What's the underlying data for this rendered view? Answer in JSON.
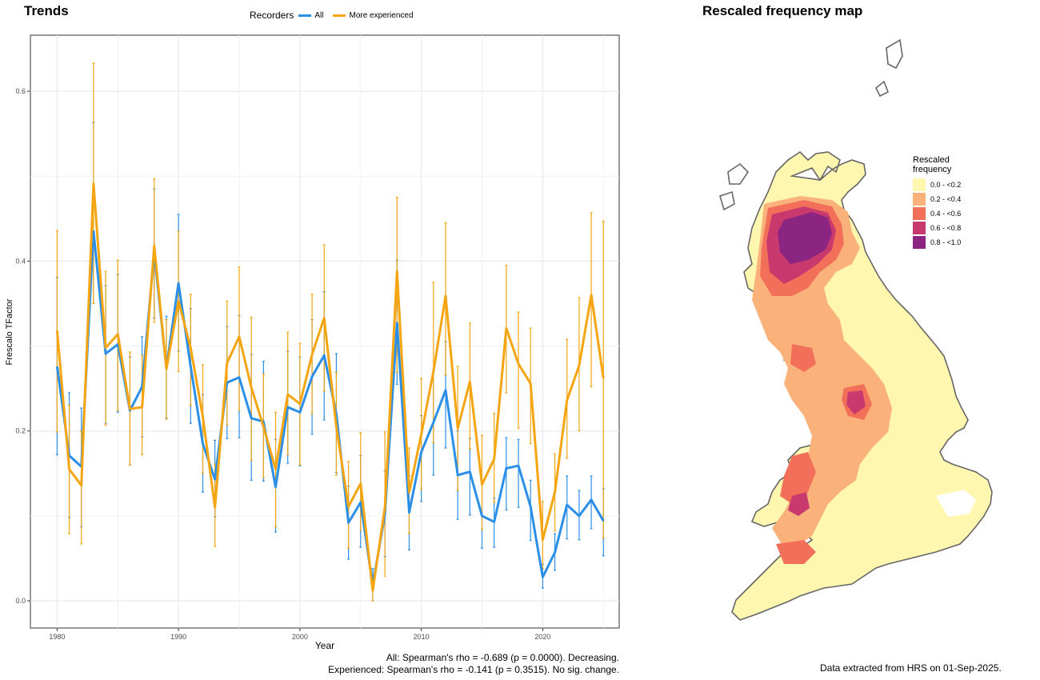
{
  "trends_title": "Trends",
  "map_title": "Rescaled frequency map",
  "legend": {
    "title": "Recorders",
    "items": [
      {
        "label": "All",
        "color": "#2B8FE8"
      },
      {
        "label": "More experienced",
        "color": "#F5A511"
      }
    ]
  },
  "stats": {
    "all": "All: Spearman's rho = -0.689 (p = 0.0000). Decreasing.",
    "experienced": "Experienced: Spearman's rho = -0.141 (p = 0.3515). No sig. change."
  },
  "footer": "Data extracted from HRS on 01-Sep-2025.",
  "map_legend": {
    "title": "Rescaled\nfrequency",
    "bins": [
      {
        "label": "0.0 - <0.2",
        "color": "#FFF7B0"
      },
      {
        "label": "0.2 - <0.4",
        "color": "#FBB27A"
      },
      {
        "label": "0.4 - <0.6",
        "color": "#F2705A"
      },
      {
        "label": "0.6 - <0.8",
        "color": "#C83A6E"
      },
      {
        "label": "0.8 - <1.0",
        "color": "#8B2581"
      }
    ]
  },
  "chart_data": {
    "type": "line",
    "xlabel": "Year",
    "ylabel": "Frescalo TFactor",
    "xlim": [
      1977.8,
      2026.3
    ],
    "ylim": [
      -0.032,
      0.666
    ],
    "xticks": [
      1980,
      1990,
      2000,
      2010,
      2020
    ],
    "yticks": [
      0.0,
      0.2,
      0.4,
      0.6
    ],
    "ytick_labels": [
      "0.0",
      "0.2",
      "0.4",
      "0.6"
    ],
    "grid": true,
    "legend_position": "top",
    "x": [
      1980,
      1981,
      1982,
      1983,
      1984,
      1985,
      1986,
      1987,
      1988,
      1989,
      1990,
      1991,
      1992,
      1993,
      1994,
      1995,
      1996,
      1997,
      1998,
      1999,
      2000,
      2001,
      2002,
      2003,
      2004,
      2005,
      2006,
      2007,
      2008,
      2009,
      2010,
      2011,
      2012,
      2013,
      2014,
      2015,
      2016,
      2017,
      2018,
      2019,
      2020,
      2021,
      2022,
      2023,
      2024,
      2025
    ],
    "series": [
      {
        "name": "All",
        "color": "#2B8FE8",
        "values": [
          0.276,
          0.171,
          0.158,
          0.435,
          0.291,
          0.302,
          0.224,
          0.252,
          0.41,
          0.274,
          0.374,
          0.276,
          0.185,
          0.143,
          0.257,
          0.263,
          0.215,
          0.211,
          0.134,
          0.228,
          0.222,
          0.264,
          0.289,
          0.22,
          0.092,
          0.116,
          0.018,
          0.102,
          0.327,
          0.104,
          0.175,
          0.21,
          0.248,
          0.148,
          0.152,
          0.1,
          0.093,
          0.156,
          0.159,
          0.111,
          0.028,
          0.057,
          0.113,
          0.1,
          0.119,
          0.094
        ],
        "lower": [
          0.172,
          0.098,
          0.087,
          0.35,
          0.209,
          0.222,
          0.16,
          0.193,
          0.333,
          0.215,
          0.294,
          0.209,
          0.128,
          0.099,
          0.191,
          0.192,
          0.142,
          0.141,
          0.081,
          0.162,
          0.159,
          0.196,
          0.213,
          0.151,
          0.049,
          0.063,
          0.0,
          0.052,
          0.255,
          0.06,
          0.117,
          0.148,
          0.18,
          0.096,
          0.101,
          0.062,
          0.063,
          0.107,
          0.11,
          0.071,
          0.015,
          0.036,
          0.073,
          0.072,
          0.085,
          0.053
        ],
        "upper": [
          0.381,
          0.245,
          0.227,
          0.563,
          0.371,
          0.384,
          0.287,
          0.311,
          0.485,
          0.335,
          0.455,
          0.344,
          0.243,
          0.189,
          0.323,
          0.336,
          0.29,
          0.282,
          0.19,
          0.294,
          0.287,
          0.331,
          0.364,
          0.291,
          0.135,
          0.171,
          0.038,
          0.153,
          0.401,
          0.147,
          0.218,
          0.272,
          0.305,
          0.2,
          0.191,
          0.139,
          0.121,
          0.192,
          0.19,
          0.142,
          0.043,
          0.079,
          0.147,
          0.13,
          0.147,
          0.132
        ]
      },
      {
        "name": "More experienced",
        "color": "#F5A511",
        "values": [
          0.318,
          0.155,
          0.136,
          0.491,
          0.298,
          0.314,
          0.226,
          0.228,
          0.418,
          0.273,
          0.353,
          0.298,
          0.217,
          0.11,
          0.28,
          0.311,
          0.251,
          0.205,
          0.155,
          0.243,
          0.232,
          0.29,
          0.333,
          0.205,
          0.111,
          0.138,
          0.012,
          0.11,
          0.388,
          0.128,
          0.196,
          0.27,
          0.359,
          0.203,
          0.258,
          0.137,
          0.167,
          0.321,
          0.279,
          0.256,
          0.072,
          0.128,
          0.236,
          0.277,
          0.36,
          0.262
        ],
        "lower": [
          0.199,
          0.079,
          0.067,
          0.35,
          0.207,
          0.224,
          0.16,
          0.172,
          0.328,
          0.214,
          0.27,
          0.23,
          0.15,
          0.064,
          0.207,
          0.224,
          0.165,
          0.145,
          0.087,
          0.172,
          0.16,
          0.22,
          0.247,
          0.148,
          0.062,
          0.083,
          0.0,
          0.029,
          0.269,
          0.079,
          0.131,
          0.186,
          0.266,
          0.13,
          0.179,
          0.084,
          0.116,
          0.245,
          0.203,
          0.185,
          0.038,
          0.082,
          0.168,
          0.2,
          0.252,
          0.074
        ],
        "upper": [
          0.436,
          0.23,
          0.2,
          0.633,
          0.388,
          0.401,
          0.293,
          0.289,
          0.497,
          0.331,
          0.435,
          0.361,
          0.278,
          0.161,
          0.353,
          0.393,
          0.334,
          0.267,
          0.222,
          0.316,
          0.303,
          0.361,
          0.419,
          0.269,
          0.164,
          0.198,
          0.027,
          0.199,
          0.475,
          0.18,
          0.262,
          0.375,
          0.445,
          0.276,
          0.327,
          0.195,
          0.221,
          0.395,
          0.34,
          0.321,
          0.117,
          0.173,
          0.308,
          0.357,
          0.457,
          0.447
        ]
      }
    ]
  }
}
